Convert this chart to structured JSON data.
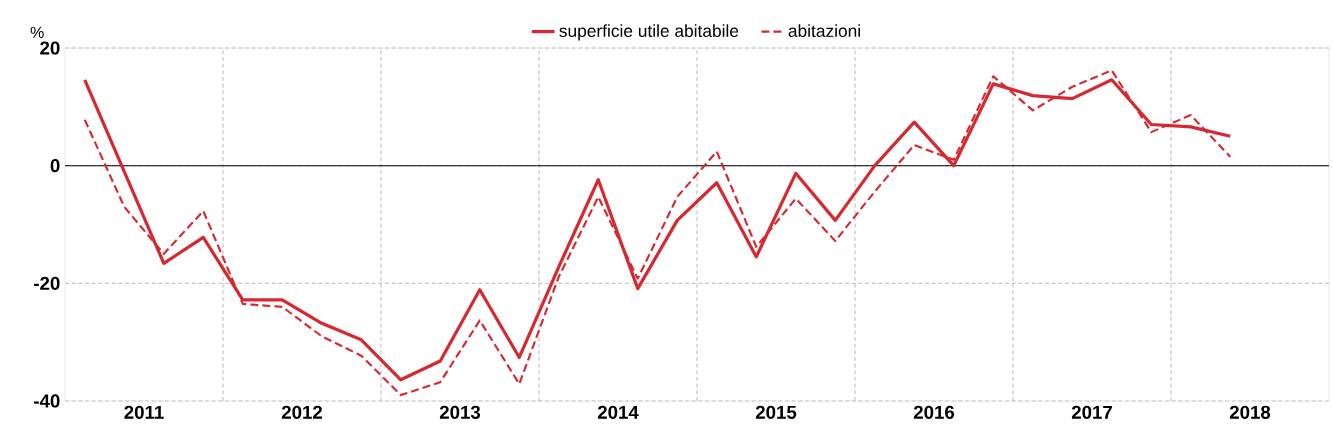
{
  "chart_data": {
    "type": "line",
    "ylabel": "%",
    "x": [
      2011.125,
      2011.375,
      2011.625,
      2011.875,
      2012.125,
      2012.375,
      2012.625,
      2012.875,
      2013.125,
      2013.375,
      2013.625,
      2013.875,
      2014.125,
      2014.375,
      2014.625,
      2014.875,
      2015.125,
      2015.375,
      2015.625,
      2015.875,
      2016.125,
      2016.375,
      2016.625,
      2016.875,
      2017.125,
      2017.375,
      2017.625,
      2017.875,
      2018.125,
      2018.375
    ],
    "series": [
      {
        "name": "superficie utile abitabile",
        "color": "#d7282f",
        "line_style": "solid",
        "values": [
          14.6,
          -1,
          -16.6,
          -12.2,
          -22.8,
          -22.8,
          -26.8,
          -29.6,
          -36.4,
          -33.2,
          -21.1,
          -32.6,
          -17.2,
          -2.4,
          -20.9,
          -9.3,
          -2.9,
          -15.5,
          -1.3,
          -9.3,
          0,
          7.4,
          0,
          13.9,
          11.9,
          11.4,
          14.6,
          7.0,
          6.6,
          5.0
        ]
      },
      {
        "name": "abitazioni",
        "color": "#d7282f",
        "line_style": "dashed",
        "values": [
          7.8,
          -7,
          -15,
          -7.7,
          -23.5,
          -24,
          -29,
          -32.3,
          -39,
          -36.8,
          -26.3,
          -37.1,
          -18.9,
          -5.3,
          -19.2,
          -5.3,
          2.4,
          -13.8,
          -5.6,
          -12.8,
          -4.4,
          3.5,
          1,
          15.2,
          9.4,
          13.4,
          16.2,
          5.7,
          8.6,
          1.5
        ]
      }
    ],
    "xlim": [
      2011,
      2019
    ],
    "xticks": [
      {
        "value": 2012,
        "label": null
      },
      {
        "value": 2013,
        "label": null
      },
      {
        "value": 2014,
        "label": null
      },
      {
        "value": 2015,
        "label": null
      },
      {
        "value": 2016,
        "label": null
      },
      {
        "value": 2017,
        "label": null
      },
      {
        "value": 2018,
        "label": null
      },
      {
        "value": 2011.5,
        "label": "2011"
      },
      {
        "value": 2012.5,
        "label": "2012"
      },
      {
        "value": 2013.5,
        "label": "2013"
      },
      {
        "value": 2014.5,
        "label": "2014"
      },
      {
        "value": 2015.5,
        "label": "2015"
      },
      {
        "value": 2016.5,
        "label": "2016"
      },
      {
        "value": 2017.5,
        "label": "2017"
      },
      {
        "value": 2018.5,
        "label": "2018"
      }
    ],
    "ylim": [
      -40,
      20
    ],
    "yticks": [
      -40,
      -20,
      0,
      20
    ],
    "ref_lines": [
      {
        "axis": "y",
        "value": 0,
        "color": "#000000"
      }
    ],
    "grid": true,
    "legend": "top",
    "marker": "none"
  }
}
